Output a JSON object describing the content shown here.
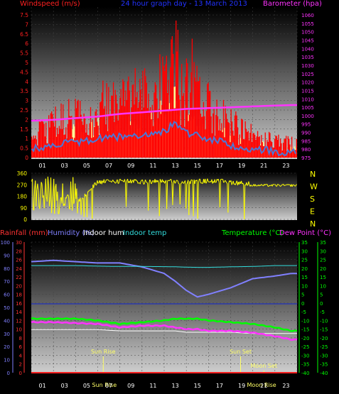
{
  "header": {
    "left": "Windspeed (m/s)",
    "center": "24 hour graph day - 13 March 2013",
    "right": "Barometer (hpa)"
  },
  "colors": {
    "wind": "#ff0000",
    "gust_fill": "#ffff99",
    "wind_avg": "#4a78d8",
    "barometer": "#ff33ff",
    "direction": "#ffff00",
    "rain": "#ff0000",
    "humidity": "#8080ff",
    "indoor_hum": "#ffffff",
    "indoor_temp": "#33dddd",
    "temperature": "#00ff00",
    "dewpoint": "#ff33ff",
    "sun": "#ffff66",
    "axis_left": "#ff2020",
    "axis_right": "#ff33ff",
    "axis_rain": "#ff3333",
    "axis_hum": "#8080ff",
    "axis_temp": "#00ff00"
  },
  "hours": [
    "01",
    "03",
    "05",
    "07",
    "09",
    "11",
    "13",
    "15",
    "17",
    "19",
    "21",
    "23"
  ],
  "wind_ticks": [
    "0",
    "0.5",
    "1",
    "1.5",
    "2",
    "2.5",
    "3",
    "3.5",
    "4",
    "4.5",
    "5",
    "5.5",
    "6",
    "6.5",
    "7",
    "7.5"
  ],
  "baro_ticks": [
    "975",
    "980",
    "985",
    "990",
    "995",
    "1000",
    "1005",
    "1010",
    "1015",
    "1020",
    "1025",
    "1030",
    "1035",
    "1040",
    "1045",
    "1050",
    "1055",
    "1060"
  ],
  "dir_ticks": [
    "0",
    "90",
    "180",
    "270",
    "360"
  ],
  "dir_letters": [
    "N",
    "W",
    "S",
    "E",
    "N"
  ],
  "legend": {
    "rainfall": "Rainfall (mm)",
    "humidity": "Humidity (%)",
    "indoor_hum": "Indoor hum",
    "indoor_temp": "Indoor temp",
    "temperature": "Temperature (°C)",
    "dewpoint": "Dew Point (°C)"
  },
  "rain_ticks": [
    "0",
    "2",
    "4",
    "6",
    "8",
    "10",
    "12",
    "14",
    "16",
    "18",
    "20",
    "22",
    "24",
    "26",
    "28",
    "30"
  ],
  "hum_ticks": [
    "0",
    "10",
    "20",
    "30",
    "40",
    "50",
    "60",
    "70",
    "80",
    "90",
    "100"
  ],
  "temp_ticks": [
    "35",
    "30",
    "25",
    "20",
    "15",
    "10",
    "5",
    "0",
    "-5",
    "-10",
    "-15",
    "-20",
    "-25",
    "-30",
    "-35",
    "-40"
  ],
  "events": {
    "sunrise": "Sun Rise",
    "sunset": "Sun Set",
    "moonset": "Moon Set",
    "moonrise": "Moon Rise"
  },
  "chart_data": [
    {
      "type": "line",
      "title": "24 hour graph day - 13 March 2013",
      "ylabel": "Windspeed (m/s)",
      "y2label": "Barometer (hpa)",
      "ylim": [
        0,
        7.5
      ],
      "y2lim": [
        975,
        1060
      ],
      "x": [
        0,
        2,
        4,
        6,
        8,
        10,
        12,
        13,
        14,
        16,
        18,
        20,
        22,
        23.5
      ],
      "series": [
        {
          "name": "Windspeed (m/s)",
          "values": [
            0.8,
            1.2,
            1.5,
            1.8,
            2.0,
            2.2,
            2.6,
            3.2,
            2.4,
            1.8,
            1.2,
            0.8,
            0.6,
            0.5
          ]
        },
        {
          "name": "Barometer (hpa)",
          "values": [
            997,
            997.5,
            998.5,
            999.5,
            1001,
            1002,
            1003,
            1003.5,
            1004,
            1004.5,
            1005,
            1005.5,
            1006,
            1006.3
          ]
        }
      ]
    },
    {
      "type": "scatter",
      "ylim": [
        0,
        360
      ],
      "x": [
        0,
        2,
        4,
        6,
        8,
        10,
        12,
        14,
        16,
        18,
        20,
        22,
        23.5
      ],
      "series": [
        {
          "values": [
            300,
            180,
            120,
            290,
            300,
            290,
            300,
            290,
            300,
            290,
            275,
            270,
            260
          ]
        }
      ]
    },
    {
      "type": "line",
      "x": [
        0,
        2,
        4,
        6,
        8,
        10,
        12,
        13,
        14,
        15,
        16,
        18,
        20,
        22,
        23.5
      ],
      "series": [
        {
          "name": "Humidity (%)",
          "values": [
            85,
            86,
            85,
            84,
            84,
            81,
            76,
            70,
            63,
            58,
            60,
            65,
            72,
            74,
            76
          ]
        },
        {
          "name": "Indoor hum",
          "values": [
            33,
            33,
            33,
            33,
            32,
            32,
            32,
            32,
            31,
            31,
            31,
            31,
            30,
            30,
            30
          ]
        },
        {
          "name": "Indoor temp",
          "values": [
            21.5,
            21.5,
            21.5,
            21.2,
            21,
            21,
            20.9,
            20.8,
            20.6,
            20.5,
            20.5,
            20.8,
            21,
            21.5,
            21.5
          ]
        },
        {
          "name": "Temperature (°C)",
          "values": [
            -9,
            -9,
            -9,
            -10,
            -12,
            -11,
            -10,
            -9,
            -9,
            -9,
            -10,
            -11,
            -12,
            -14,
            -16
          ]
        },
        {
          "name": "Dew Point (°C)",
          "values": [
            -11,
            -11,
            -11.5,
            -12,
            -14,
            -13,
            -13,
            -14,
            -15,
            -15,
            -16,
            -16,
            -17,
            -19,
            -21
          ]
        },
        {
          "name": "Rainfall (mm)",
          "values": [
            0,
            0,
            0,
            0,
            0,
            0,
            0,
            0,
            0,
            0,
            0,
            0,
            0,
            0,
            0
          ]
        }
      ]
    }
  ]
}
